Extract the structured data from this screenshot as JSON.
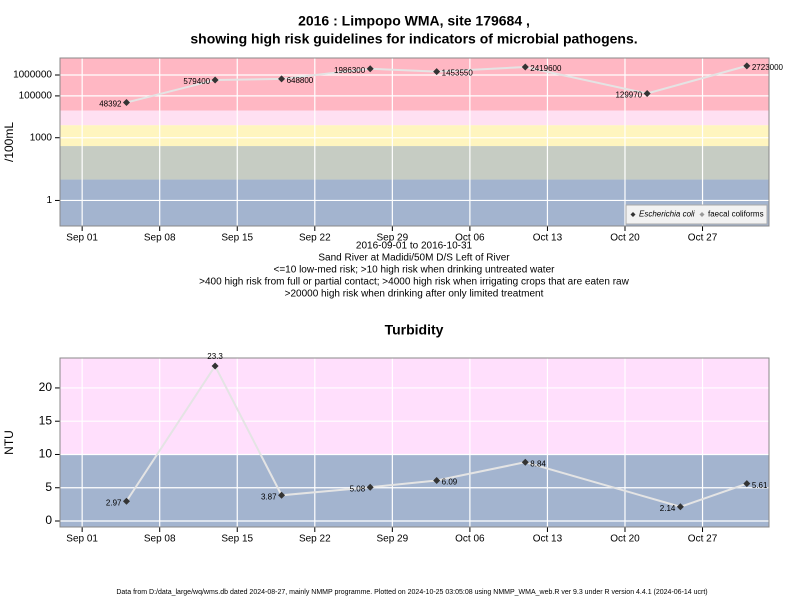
{
  "chart_data": [
    {
      "type": "line",
      "title": "2016 : Limpopo WMA, site 179684 ,",
      "subtitle": "showing high risk guidelines for indicators of microbial pathogens.",
      "ylabel": "/100mL",
      "log_scale": true,
      "grid": true,
      "legend": "bottom-right",
      "x": [
        "2016-09-05",
        "2016-09-13",
        "2016-09-19",
        "2016-09-27",
        "2016-10-03",
        "2016-10-11",
        "2016-10-22",
        "2016-10-31"
      ],
      "series": [
        {
          "name": "Escherichia coli",
          "color": "#333333",
          "values": [
            48392,
            579400,
            648800,
            1986300,
            1453550,
            2419600,
            129970,
            2723000
          ]
        },
        {
          "name": "faecal coliforms",
          "color": "#999999",
          "values": [
            null,
            null,
            null,
            null,
            null,
            null,
            null,
            null
          ]
        }
      ],
      "xlim": [
        "2016-08-30",
        "2016-11-02"
      ],
      "xticks": [
        {
          "value": "2016-09-01",
          "label": "Sep 01"
        },
        {
          "value": "2016-09-08",
          "label": "Sep 08"
        },
        {
          "value": "2016-09-15",
          "label": "Sep 15"
        },
        {
          "value": "2016-09-22",
          "label": "Sep 22"
        },
        {
          "value": "2016-09-29",
          "label": "Sep 29"
        },
        {
          "value": "2016-10-06",
          "label": "Oct 06"
        },
        {
          "value": "2016-10-13",
          "label": "Oct 13"
        },
        {
          "value": "2016-10-20",
          "label": "Oct 20"
        },
        {
          "value": "2016-10-27",
          "label": "Oct 27"
        }
      ],
      "ylim": [
        0.06,
        6500000
      ],
      "yticks": [
        1,
        1000,
        100000,
        1000000
      ],
      "bands": [
        {
          "from": 0.06,
          "to": 10,
          "color": "#a3b4cf"
        },
        {
          "from": 10,
          "to": 400,
          "color": "#c6ccc3"
        },
        {
          "from": 400,
          "to": 4000,
          "color": "#fff5bf"
        },
        {
          "from": 4000,
          "to": 20000,
          "color": "#ffe0f2"
        },
        {
          "from": 20000,
          "to": 6500000,
          "color": "#ffb7c3"
        }
      ],
      "captions": [
        "2016-09-01 to 2016-10-31",
        "Sand River at Madidi/50M D/S Left of River",
        "<=10 low-med risk; >10 high risk when drinking untreated water",
        ">400 high risk from full or partial contact; >4000 high risk when irrigating crops that are eaten raw",
        ">20000 high risk when drinking after only limited treatment"
      ]
    },
    {
      "type": "line",
      "title": "Turbidity",
      "ylabel": "NTU",
      "grid": true,
      "x": [
        "2016-09-05",
        "2016-09-13",
        "2016-09-19",
        "2016-09-27",
        "2016-10-03",
        "2016-10-11",
        "2016-10-25",
        "2016-10-31"
      ],
      "series": [
        {
          "name": "Turbidity",
          "color": "#333333",
          "values": [
            2.97,
            23.3,
            3.87,
            5.08,
            6.09,
            8.84,
            2.14,
            5.61
          ]
        }
      ],
      "xlim": [
        "2016-08-30",
        "2016-11-02"
      ],
      "xticks": [
        {
          "value": "2016-09-01",
          "label": "Sep 01"
        },
        {
          "value": "2016-09-08",
          "label": "Sep 08"
        },
        {
          "value": "2016-09-15",
          "label": "Sep 15"
        },
        {
          "value": "2016-09-22",
          "label": "Sep 22"
        },
        {
          "value": "2016-09-29",
          "label": "Sep 29"
        },
        {
          "value": "2016-10-06",
          "label": "Oct 06"
        },
        {
          "value": "2016-10-13",
          "label": "Oct 13"
        },
        {
          "value": "2016-10-20",
          "label": "Oct 20"
        },
        {
          "value": "2016-10-27",
          "label": "Oct 27"
        }
      ],
      "ylim": [
        -0.9,
        24.5
      ],
      "yticks": [
        0,
        5,
        10,
        15,
        20
      ],
      "bands": [
        {
          "from": -0.9,
          "to": 10,
          "color": "#a3b4cf"
        },
        {
          "from": 10,
          "to": 24.5,
          "color": "#ffdffc"
        }
      ]
    }
  ],
  "footer": "Data from D:/data_large/wq/wms.db dated 2024-08-27, mainly NMMP programme. Plotted on 2024-10-25 03:05:08 using NMMP_WMA_web.R ver 9.3 under R version 4.4.1 (2024-06-14 ucrt)"
}
